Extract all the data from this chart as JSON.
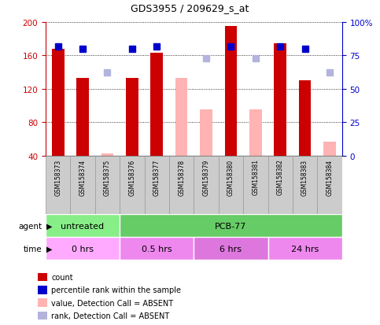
{
  "title": "GDS3955 / 209629_s_at",
  "samples": [
    "GSM158373",
    "GSM158374",
    "GSM158375",
    "GSM158376",
    "GSM158377",
    "GSM158378",
    "GSM158379",
    "GSM158380",
    "GSM158381",
    "GSM158382",
    "GSM158383",
    "GSM158384"
  ],
  "count_values": [
    168,
    133,
    null,
    133,
    163,
    null,
    null,
    195,
    null,
    175,
    130,
    null
  ],
  "count_absent_values": [
    null,
    null,
    43,
    null,
    null,
    133,
    95,
    null,
    95,
    null,
    null,
    57
  ],
  "rank_present_values": [
    82,
    80,
    null,
    80,
    82,
    null,
    null,
    82,
    null,
    82,
    80,
    null
  ],
  "rank_absent_values": [
    null,
    null,
    62,
    null,
    null,
    null,
    73,
    null,
    73,
    null,
    null,
    62
  ],
  "ylim_left": [
    40,
    200
  ],
  "ylim_right": [
    0,
    100
  ],
  "yticks_left": [
    40,
    80,
    120,
    160,
    200
  ],
  "yticks_right": [
    0,
    25,
    50,
    75,
    100
  ],
  "ytick_labels_left": [
    "40",
    "80",
    "120",
    "160",
    "200"
  ],
  "ytick_labels_right": [
    "0",
    "25",
    "50",
    "75",
    "100%"
  ],
  "bar_color_present": "#cc0000",
  "bar_color_absent": "#ffb3b3",
  "rank_color_present": "#0000cc",
  "rank_color_absent": "#b3b3dd",
  "agent_groups": [
    {
      "label": "untreated",
      "start": 0,
      "end": 3,
      "color": "#88ee88"
    },
    {
      "label": "PCB-77",
      "start": 3,
      "end": 12,
      "color": "#66cc66"
    }
  ],
  "time_groups": [
    {
      "label": "0 hrs",
      "start": 0,
      "end": 3,
      "color": "#ffaaff"
    },
    {
      "label": "0.5 hrs",
      "start": 3,
      "end": 6,
      "color": "#ee88ee"
    },
    {
      "label": "6 hrs",
      "start": 6,
      "end": 9,
      "color": "#dd77dd"
    },
    {
      "label": "24 hrs",
      "start": 9,
      "end": 12,
      "color": "#ee88ee"
    }
  ],
  "legend_items": [
    {
      "label": "count",
      "color": "#cc0000"
    },
    {
      "label": "percentile rank within the sample",
      "color": "#0000cc"
    },
    {
      "label": "value, Detection Call = ABSENT",
      "color": "#ffb3b3"
    },
    {
      "label": "rank, Detection Call = ABSENT",
      "color": "#b3b3dd"
    }
  ],
  "bar_width": 0.5,
  "rank_marker_size": 6,
  "grid_color": "#000000",
  "bg_color": "#ffffff",
  "axis_left_color": "#cc0000",
  "axis_right_color": "#0000cc",
  "sample_box_color": "#cccccc",
  "sample_box_border": "#999999"
}
